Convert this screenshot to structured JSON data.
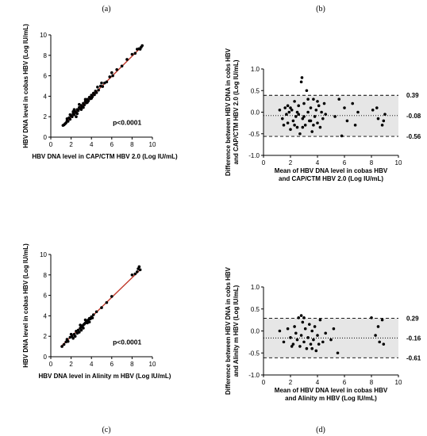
{
  "panel_labels": [
    "(a)",
    "(b)",
    "(c)",
    "(d)"
  ],
  "chart_data": [
    {
      "id": "a",
      "type": "scatter",
      "xlabel": "HBV DNA level in CAP/CTM HBV 2.0 (Log IU/mL)",
      "ylabel": [
        "HBV DNA level in cobas HBV (Log IU/mL)"
      ],
      "xlim": [
        0,
        10
      ],
      "ylim": [
        0,
        10
      ],
      "xticks": [
        0,
        2,
        4,
        6,
        8,
        10
      ],
      "yticks": [
        0,
        2,
        4,
        6,
        8,
        10
      ],
      "xtick_labels": [
        "0",
        "2",
        "4",
        "6",
        "8",
        "10"
      ],
      "ytick_labels": [
        "0",
        "2",
        "4",
        "6",
        "8",
        "10"
      ],
      "annotation": "p<0.0001",
      "regression_line": {
        "x": [
          1.1,
          9.1
        ],
        "y": [
          1.1,
          9.0
        ],
        "color": "#c0392b"
      },
      "points": [
        [
          1.2,
          1.15
        ],
        [
          1.3,
          1.2
        ],
        [
          1.4,
          1.3
        ],
        [
          1.5,
          1.4
        ],
        [
          1.6,
          1.6
        ],
        [
          1.7,
          1.55
        ],
        [
          1.8,
          1.9
        ],
        [
          1.9,
          1.75
        ],
        [
          2.0,
          2.1
        ],
        [
          2.1,
          2.0
        ],
        [
          2.2,
          2.3
        ],
        [
          2.3,
          2.2
        ],
        [
          2.4,
          2.5
        ],
        [
          2.5,
          2.4
        ],
        [
          2.6,
          2.7
        ],
        [
          2.7,
          2.6
        ],
        [
          2.8,
          2.9
        ],
        [
          2.9,
          2.8
        ],
        [
          3.0,
          3.1
        ],
        [
          3.1,
          2.95
        ],
        [
          3.2,
          3.3
        ],
        [
          3.3,
          3.15
        ],
        [
          3.4,
          3.5
        ],
        [
          3.5,
          3.35
        ],
        [
          3.6,
          3.7
        ],
        [
          3.7,
          3.55
        ],
        [
          3.8,
          3.9
        ],
        [
          3.9,
          3.75
        ],
        [
          4.0,
          4.1
        ],
        [
          4.1,
          3.95
        ],
        [
          4.2,
          4.3
        ],
        [
          4.3,
          4.15
        ],
        [
          4.4,
          4.5
        ],
        [
          4.5,
          4.35
        ],
        [
          4.7,
          4.6
        ],
        [
          4.9,
          5.0
        ],
        [
          5.1,
          4.95
        ],
        [
          5.3,
          5.3
        ],
        [
          5.5,
          5.4
        ],
        [
          5.8,
          5.9
        ],
        [
          6.1,
          6.0
        ],
        [
          6.5,
          6.6
        ],
        [
          7.0,
          6.95
        ],
        [
          7.5,
          7.6
        ],
        [
          8.0,
          8.1
        ],
        [
          8.3,
          8.2
        ],
        [
          8.5,
          8.6
        ],
        [
          8.7,
          8.65
        ],
        [
          8.9,
          8.8
        ],
        [
          9.0,
          8.95
        ],
        [
          2.2,
          2.5
        ],
        [
          2.6,
          2.3
        ],
        [
          3.0,
          2.7
        ],
        [
          3.4,
          3.7
        ],
        [
          2.8,
          3.2
        ],
        [
          1.6,
          1.8
        ],
        [
          2.3,
          2.7
        ],
        [
          3.6,
          3.4
        ],
        [
          4.0,
          3.8
        ],
        [
          3.2,
          2.9
        ],
        [
          2.5,
          2.0
        ],
        [
          1.9,
          2.2
        ],
        [
          4.6,
          4.9
        ],
        [
          5.0,
          5.3
        ],
        [
          6.0,
          6.3
        ],
        [
          8.8,
          8.6
        ]
      ]
    },
    {
      "id": "b",
      "type": "scatter",
      "xlabel_lines": [
        "Mean of HBV DNA level in  cobas HBV",
        "and CAP/CTM HBV 2.0 (Log IU/mL)"
      ],
      "ylabel_lines": [
        "Difference between HBV DNA in cobs HBV",
        "and CAP/CTM HBV 2.0 (Log IU/mL)"
      ],
      "xlim": [
        0,
        10
      ],
      "ylim": [
        -1.0,
        1.0
      ],
      "xticks": [
        0,
        2,
        4,
        6,
        8,
        10
      ],
      "yticks": [
        -1.0,
        -0.5,
        0.0,
        0.5,
        1.0
      ],
      "xtick_labels": [
        "0",
        "2",
        "4",
        "6",
        "8",
        "10"
      ],
      "ytick_labels": [
        "-1.0",
        "-0.5",
        "0.0",
        "0.5",
        "1.0"
      ],
      "mean_bias": -0.08,
      "upper_loa": 0.39,
      "lower_loa": -0.56,
      "ref_labels": [
        "0.39",
        "-0.08",
        "-0.56"
      ],
      "band_color": "#e6e6e6",
      "points": [
        [
          1.2,
          0.05
        ],
        [
          1.4,
          -0.15
        ],
        [
          1.5,
          -0.3
        ],
        [
          1.6,
          0.1
        ],
        [
          1.7,
          -0.05
        ],
        [
          1.8,
          -0.25
        ],
        [
          1.9,
          0.0
        ],
        [
          2.0,
          -0.4
        ],
        [
          2.1,
          0.05
        ],
        [
          2.2,
          -0.2
        ],
        [
          2.3,
          0.25
        ],
        [
          2.4,
          -0.1
        ],
        [
          2.5,
          -0.35
        ],
        [
          2.6,
          0.15
        ],
        [
          2.7,
          -0.5
        ],
        [
          2.8,
          0.7
        ],
        [
          2.85,
          0.8
        ],
        [
          2.9,
          -0.15
        ],
        [
          3.0,
          0.2
        ],
        [
          3.1,
          -0.3
        ],
        [
          3.2,
          0.5
        ],
        [
          3.3,
          0.0
        ],
        [
          3.4,
          -0.2
        ],
        [
          3.5,
          0.1
        ],
        [
          3.6,
          -0.45
        ],
        [
          3.7,
          0.3
        ],
        [
          3.8,
          -0.1
        ],
        [
          3.9,
          0.05
        ],
        [
          4.0,
          -0.25
        ],
        [
          4.1,
          0.15
        ],
        [
          4.2,
          -0.35
        ],
        [
          4.3,
          0.0
        ],
        [
          4.4,
          -0.15
        ],
        [
          4.5,
          0.2
        ],
        [
          2.6,
          -0.05
        ],
        [
          2.3,
          -0.3
        ],
        [
          3.0,
          -0.1
        ],
        [
          3.3,
          0.3
        ],
        [
          2.0,
          0.1
        ],
        [
          1.8,
          0.15
        ],
        [
          5.3,
          -0.1
        ],
        [
          5.6,
          0.3
        ],
        [
          5.8,
          -0.55
        ],
        [
          6.0,
          0.1
        ],
        [
          6.2,
          -0.2
        ],
        [
          6.6,
          0.2
        ],
        [
          6.8,
          -0.3
        ],
        [
          7.0,
          0.0
        ],
        [
          8.1,
          0.05
        ],
        [
          8.4,
          0.1
        ],
        [
          8.5,
          -0.15
        ],
        [
          8.8,
          -0.3
        ],
        [
          8.9,
          -0.2
        ],
        [
          9.0,
          -0.05
        ],
        [
          2.5,
          0.0
        ],
        [
          3.7,
          -0.3
        ],
        [
          4.0,
          0.25
        ],
        [
          2.9,
          -0.35
        ],
        [
          3.5,
          -0.2
        ],
        [
          4.6,
          -0.05
        ]
      ]
    },
    {
      "id": "c",
      "type": "scatter",
      "xlabel": "HBV DNA level in Alinity m HBV (Log IU/mL)",
      "ylabel": [
        "HBV DNA level in cobas HBV (Log IU/mL)"
      ],
      "xlim": [
        0,
        10
      ],
      "ylim": [
        0,
        10
      ],
      "xticks": [
        0,
        2,
        4,
        6,
        8,
        10
      ],
      "yticks": [
        0,
        2,
        4,
        6,
        8,
        10
      ],
      "xtick_labels": [
        "0",
        "2",
        "4",
        "6",
        "8",
        "10"
      ],
      "ytick_labels": [
        "0",
        "2",
        "4",
        "6",
        "8",
        "10"
      ],
      "annotation": "p<0.0001",
      "regression_line": {
        "x": [
          1.0,
          8.8
        ],
        "y": [
          1.0,
          8.5
        ],
        "color": "#c0392b"
      },
      "points": [
        [
          1.1,
          1.0
        ],
        [
          1.3,
          1.2
        ],
        [
          1.5,
          1.45
        ],
        [
          1.7,
          1.5
        ],
        [
          1.9,
          1.9
        ],
        [
          2.1,
          2.0
        ],
        [
          2.3,
          2.2
        ],
        [
          2.5,
          2.5
        ],
        [
          2.7,
          2.6
        ],
        [
          2.9,
          2.8
        ],
        [
          3.0,
          3.0
        ],
        [
          3.1,
          2.9
        ],
        [
          3.2,
          3.1
        ],
        [
          3.3,
          3.2
        ],
        [
          3.4,
          3.3
        ],
        [
          3.5,
          3.4
        ],
        [
          3.6,
          3.5
        ],
        [
          3.7,
          3.6
        ],
        [
          3.8,
          3.75
        ],
        [
          3.9,
          3.7
        ],
        [
          4.0,
          3.9
        ],
        [
          4.2,
          4.1
        ],
        [
          4.5,
          4.4
        ],
        [
          5.0,
          4.8
        ],
        [
          5.5,
          5.3
        ],
        [
          6.0,
          5.9
        ],
        [
          8.0,
          8.0
        ],
        [
          8.3,
          8.1
        ],
        [
          8.5,
          8.3
        ],
        [
          8.6,
          8.6
        ],
        [
          8.7,
          8.8
        ],
        [
          8.8,
          8.5
        ],
        [
          2.6,
          2.3
        ],
        [
          2.8,
          2.4
        ],
        [
          3.0,
          2.6
        ],
        [
          3.2,
          2.8
        ],
        [
          2.4,
          2.0
        ],
        [
          2.2,
          1.8
        ],
        [
          3.6,
          3.3
        ],
        [
          3.4,
          3.6
        ],
        [
          2.9,
          3.1
        ],
        [
          4.1,
          3.8
        ],
        [
          1.6,
          1.7
        ],
        [
          2.0,
          2.2
        ],
        [
          3.8,
          3.4
        ]
      ]
    },
    {
      "id": "d",
      "type": "scatter",
      "xlabel_lines": [
        "Mean of HBV DNA level in  cobas HBV",
        "and Alinity m HBV (Log IU/mL)"
      ],
      "ylabel_lines": [
        "Difference between HBV DNA in cobs HBV",
        "and Alinity m HBV (Log IU/mL)"
      ],
      "xlim": [
        0,
        10
      ],
      "ylim": [
        -1.0,
        1.0
      ],
      "xticks": [
        0,
        2,
        4,
        6,
        8,
        10
      ],
      "yticks": [
        -1.0,
        -0.5,
        0.0,
        0.5,
        1.0
      ],
      "xtick_labels": [
        "0",
        "2",
        "4",
        "6",
        "8",
        "10"
      ],
      "ytick_labels": [
        "-1.0",
        "-0.5",
        "0.0",
        "0.5",
        "1.0"
      ],
      "mean_bias": -0.16,
      "upper_loa": 0.29,
      "lower_loa": -0.61,
      "ref_labels": [
        "0.29",
        "-0.16",
        "-0.61"
      ],
      "band_color": "#e6e6e6",
      "points": [
        [
          1.2,
          0.0
        ],
        [
          1.5,
          -0.25
        ],
        [
          1.8,
          0.05
        ],
        [
          2.0,
          -0.15
        ],
        [
          2.2,
          -0.3
        ],
        [
          2.3,
          0.1
        ],
        [
          2.5,
          -0.2
        ],
        [
          2.6,
          0.3
        ],
        [
          2.7,
          -0.35
        ],
        [
          2.8,
          -0.1
        ],
        [
          2.9,
          0.2
        ],
        [
          3.0,
          -0.25
        ],
        [
          3.1,
          0.05
        ],
        [
          3.2,
          -0.4
        ],
        [
          3.3,
          -0.15
        ],
        [
          3.4,
          0.15
        ],
        [
          3.5,
          -0.3
        ],
        [
          3.6,
          0.0
        ],
        [
          3.7,
          -0.2
        ],
        [
          3.8,
          0.1
        ],
        [
          3.9,
          -0.45
        ],
        [
          4.0,
          -0.1
        ],
        [
          4.2,
          0.25
        ],
        [
          4.4,
          -0.25
        ],
        [
          4.6,
          -0.05
        ],
        [
          5.0,
          -0.2
        ],
        [
          5.2,
          0.05
        ],
        [
          5.5,
          -0.5
        ],
        [
          2.4,
          -0.05
        ],
        [
          3.0,
          0.3
        ],
        [
          2.1,
          -0.35
        ],
        [
          3.6,
          -0.4
        ],
        [
          4.1,
          -0.3
        ],
        [
          8.0,
          0.3
        ],
        [
          8.3,
          -0.1
        ],
        [
          8.5,
          0.1
        ],
        [
          8.6,
          -0.25
        ],
        [
          8.8,
          0.25
        ],
        [
          8.9,
          -0.3
        ],
        [
          2.8,
          0.35
        ]
      ]
    }
  ]
}
